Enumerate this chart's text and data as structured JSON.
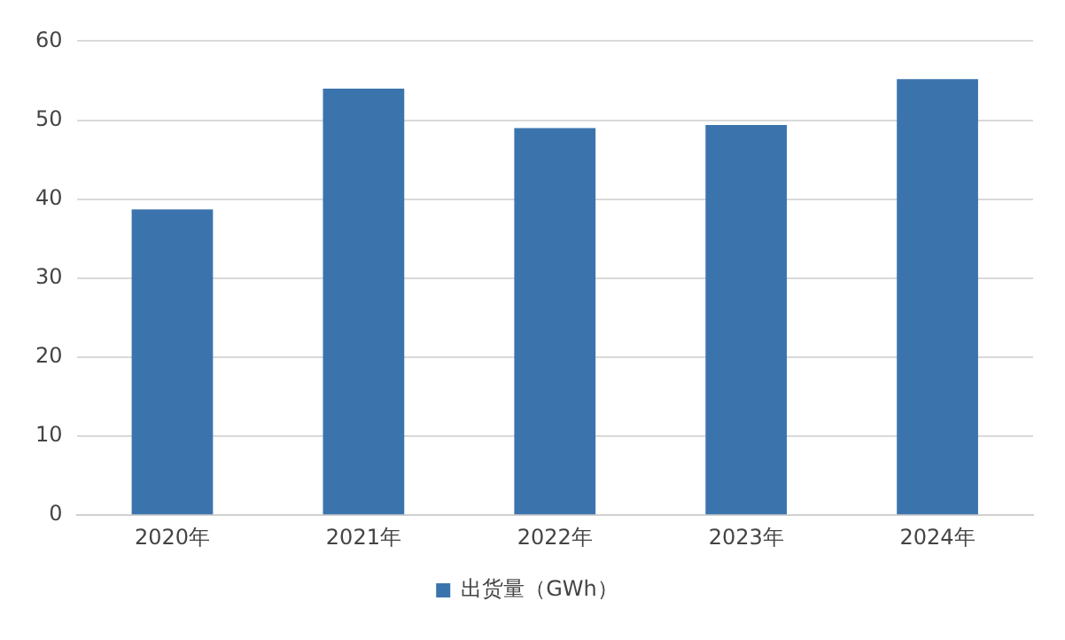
{
  "chart_data": {
    "type": "bar",
    "categories": [
      "2020年",
      "2021年",
      "2022年",
      "2023年",
      "2024年"
    ],
    "series": [
      {
        "name": "出货量（GWh）",
        "color": "#3b74ad",
        "values": [
          38.7,
          54,
          49,
          49.4,
          55.2
        ]
      }
    ],
    "ylim": [
      0,
      60
    ],
    "yticks": [
      0,
      10,
      20,
      30,
      40,
      50,
      60
    ],
    "grid": "y",
    "legend": "bottom"
  }
}
